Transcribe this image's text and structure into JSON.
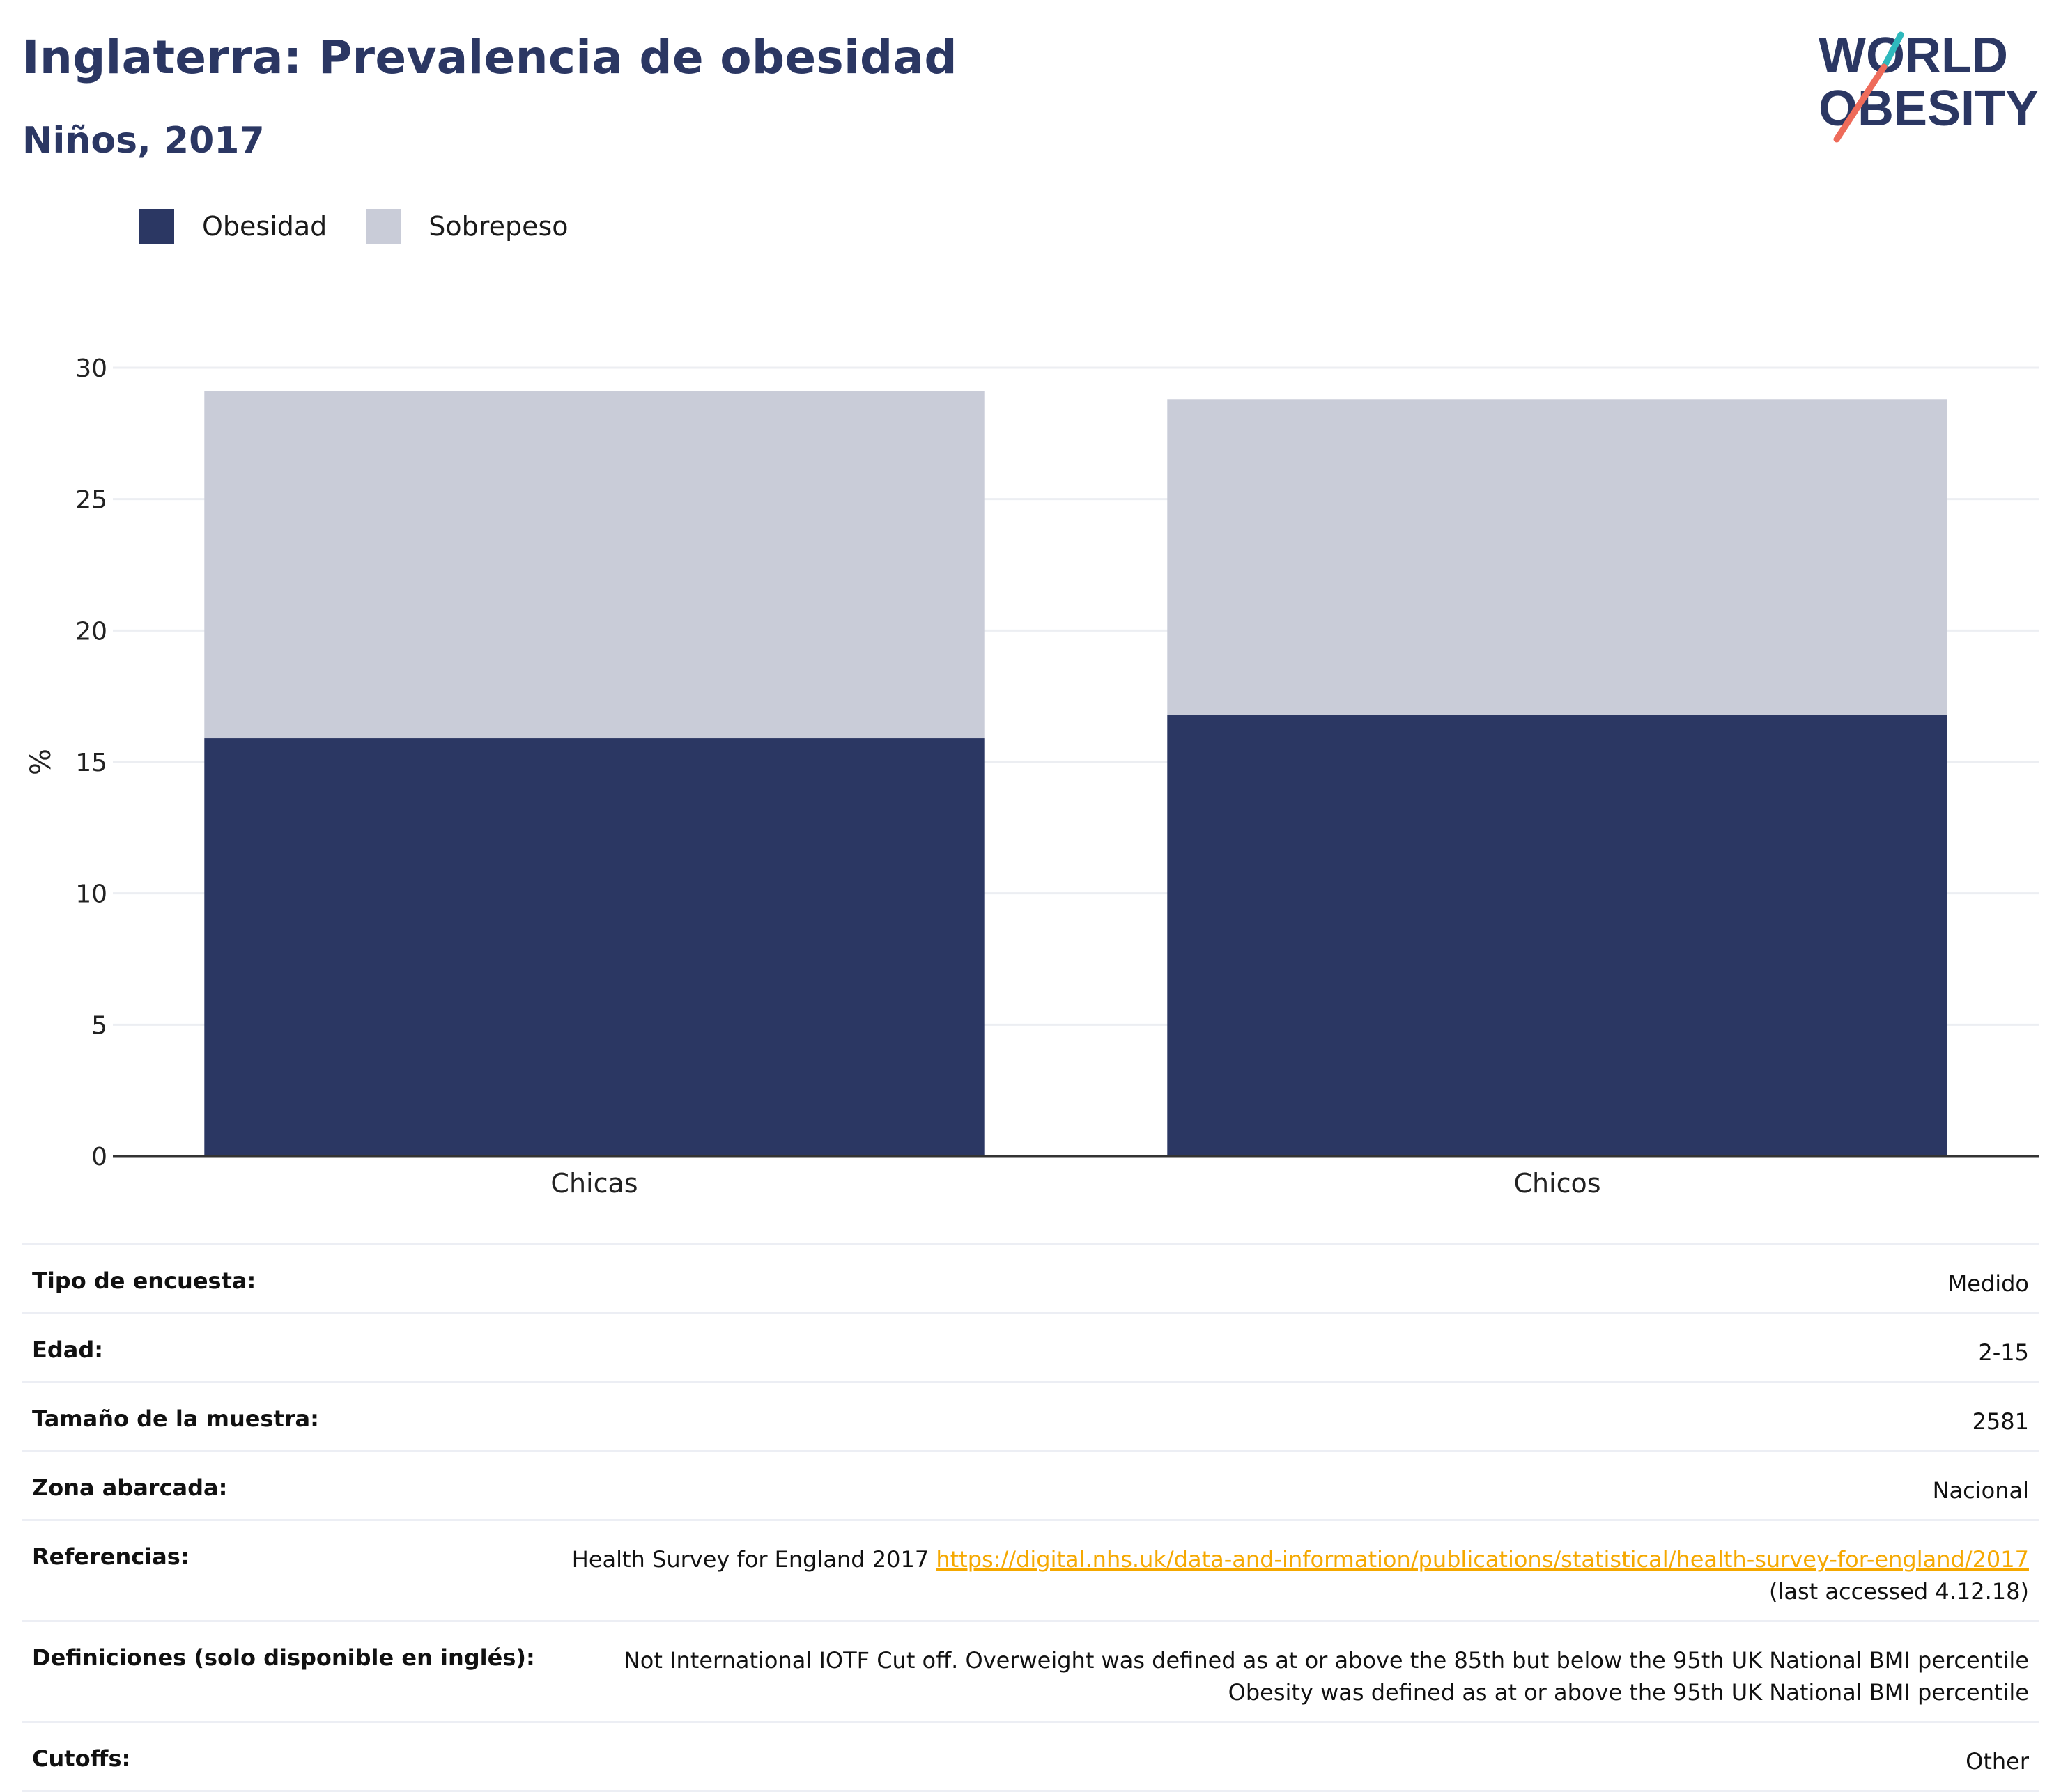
{
  "header": {
    "title": "Inglaterra: Prevalencia de obesidad",
    "subtitle": "Niños, 2017",
    "logo_line1": "WORLD",
    "logo_line2": "OBESITY"
  },
  "legend": [
    {
      "label": "Obesidad",
      "color": "#2b3763"
    },
    {
      "label": "Sobrepeso",
      "color": "#c9ccd8"
    }
  ],
  "colors": {
    "obesity": "#2b3763",
    "overweight": "#c9ccd8",
    "gridline": "#eceef2",
    "axis": "#333333",
    "link": "#f5a800",
    "logo_teal": "#2fb9bd",
    "logo_coral": "#ee6b5a"
  },
  "chart_data": {
    "type": "bar",
    "stacked": true,
    "categories": [
      "Chicas",
      "Chicos"
    ],
    "series": [
      {
        "name": "Obesidad",
        "values": [
          15.9,
          16.8
        ]
      },
      {
        "name": "Sobrepeso",
        "values": [
          13.2,
          12.0
        ]
      }
    ],
    "ylabel": "%",
    "ylim": [
      0,
      30
    ],
    "yticks": [
      0,
      5,
      10,
      15,
      20,
      25,
      30
    ],
    "grid": true,
    "legend_position": "top-left"
  },
  "meta": {
    "survey_type": {
      "label": "Tipo de encuesta:",
      "value": "Medido"
    },
    "age": {
      "label": "Edad:",
      "value": "2-15"
    },
    "sample_size": {
      "label": "Tamaño de la muestra:",
      "value": "2581"
    },
    "area": {
      "label": "Zona abarcada:",
      "value": "Nacional"
    },
    "references": {
      "label": "Referencias:",
      "text": "Health Survey for England 2017",
      "link": "https://digital.nhs.uk/data-and-information/publications/statistical/health-survey-for-england/2017",
      "accessed": "(last accessed 4.12.18)"
    },
    "definitions": {
      "label": "Definiciones (solo disponible en inglés):",
      "value": "Not International IOTF Cut off. Overweight was defined as at or above the 85th but below the 95th UK National BMI percentile Obesity was defined as at or above the 95th UK National BMI percentile"
    },
    "cutoffs": {
      "label": "Cutoffs:",
      "value": "Other"
    }
  }
}
